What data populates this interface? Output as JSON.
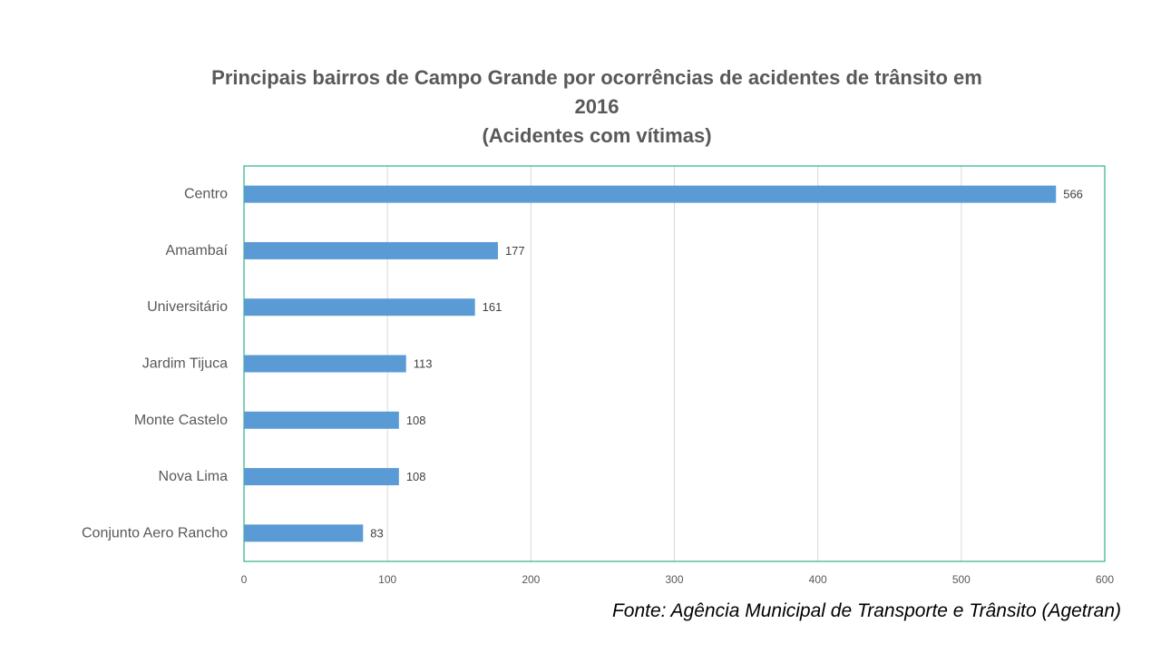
{
  "chart_data": {
    "type": "bar",
    "orientation": "horizontal",
    "title": [
      "Principais bairros de Campo Grande por ocorrências de acidentes de trânsito em",
      "2016",
      "(Acidentes com vítimas)"
    ],
    "categories": [
      "Centro",
      "Amambaí",
      "Universitário",
      "Jardim Tijuca",
      "Monte Castelo",
      "Nova Lima",
      "Conjunto Aero Rancho"
    ],
    "values": [
      566,
      177,
      161,
      113,
      108,
      108,
      83
    ],
    "xlim": [
      0,
      600
    ],
    "x_ticks": [
      0,
      100,
      200,
      300,
      400,
      500,
      600
    ],
    "grid": "vertical",
    "legend": "none",
    "data_labels": true,
    "colors": {
      "bar": "#5B9BD5",
      "grid": "#D9D9D9",
      "plot_border": "#00A36C"
    }
  },
  "source": "Fonte: Agência Municipal de Transporte e Trânsito (Agetran)"
}
